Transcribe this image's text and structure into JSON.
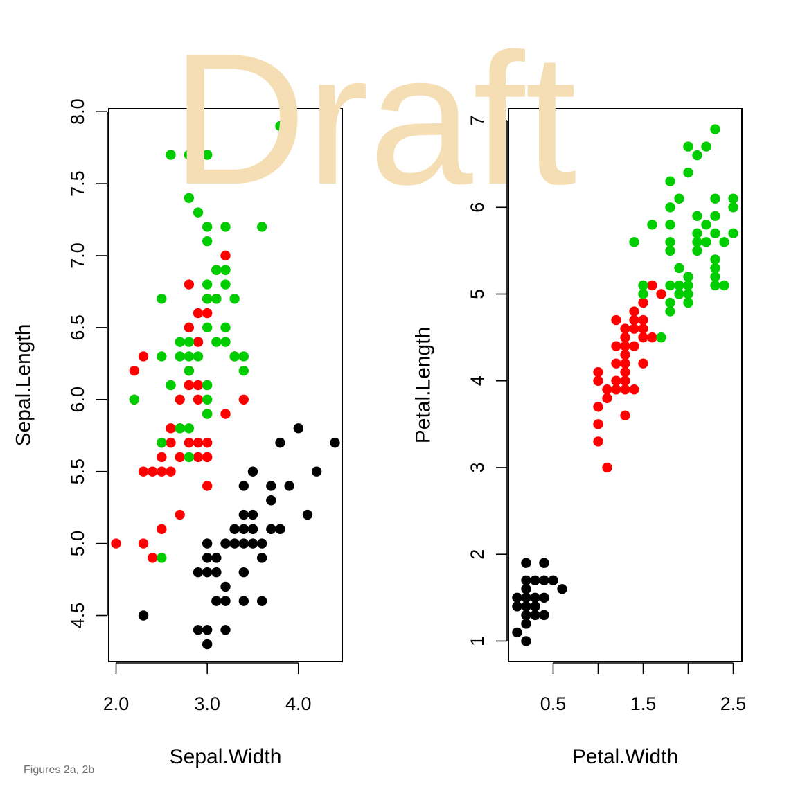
{
  "watermark": "Draft",
  "caption": "Figures 2a, 2b",
  "colors": {
    "setosa": "#000000",
    "versicolor": "#ff0000",
    "virginica": "#00cd00",
    "watermark": "#f5deb3"
  },
  "chart_data": [
    {
      "type": "scatter",
      "title": "",
      "xlabel": "Sepal.Width",
      "ylabel": "Sepal.Length",
      "xlim": [
        1.92,
        4.48
      ],
      "ylim": [
        4.18,
        8.02
      ],
      "xticks": [
        2.0,
        3.0,
        4.0
      ],
      "xtick_labels": [
        "2.0",
        "3.0",
        "4.0"
      ],
      "yticks": [
        4.5,
        5.0,
        5.5,
        6.0,
        6.5,
        7.0,
        7.5,
        8.0
      ],
      "ytick_labels": [
        "4.5",
        "5.0",
        "5.5",
        "6.0",
        "6.5",
        "7.0",
        "7.5",
        "8.0"
      ],
      "series": [
        {
          "color": "#000000",
          "points": [
            [
              2.3,
              4.5
            ],
            [
              2.9,
              4.4
            ],
            [
              3.0,
              4.4
            ],
            [
              3.0,
              4.3
            ],
            [
              3.2,
              4.4
            ],
            [
              3.0,
              4.8
            ],
            [
              3.0,
              4.9
            ],
            [
              2.9,
              4.8
            ],
            [
              3.1,
              4.9
            ],
            [
              3.1,
              4.8
            ],
            [
              3.0,
              5.0
            ],
            [
              3.1,
              4.6
            ],
            [
              3.2,
              4.6
            ],
            [
              3.2,
              4.7
            ],
            [
              3.2,
              5.0
            ],
            [
              3.3,
              5.0
            ],
            [
              3.4,
              5.0
            ],
            [
              3.4,
              5.1
            ],
            [
              3.4,
              4.8
            ],
            [
              3.4,
              4.6
            ],
            [
              3.5,
              5.0
            ],
            [
              3.5,
              5.1
            ],
            [
              3.5,
              5.2
            ],
            [
              3.4,
              5.2
            ],
            [
              3.4,
              5.4
            ],
            [
              3.6,
              5.0
            ],
            [
              3.6,
              4.6
            ],
            [
              3.5,
              5.5
            ],
            [
              3.6,
              4.9
            ],
            [
              3.7,
              5.1
            ],
            [
              3.7,
              5.3
            ],
            [
              3.7,
              5.4
            ],
            [
              3.8,
              5.1
            ],
            [
              3.8,
              5.7
            ],
            [
              3.9,
              5.4
            ],
            [
              4.0,
              5.8
            ],
            [
              4.1,
              5.2
            ],
            [
              4.2,
              5.5
            ],
            [
              4.4,
              5.7
            ],
            [
              3.3,
              5.1
            ]
          ]
        },
        {
          "color": "#ff0000",
          "points": [
            [
              2.0,
              5.0
            ],
            [
              2.2,
              6.2
            ],
            [
              2.2,
              6.0
            ],
            [
              2.3,
              6.3
            ],
            [
              2.3,
              5.5
            ],
            [
              2.3,
              5.0
            ],
            [
              2.4,
              5.5
            ],
            [
              2.4,
              4.9
            ],
            [
              2.5,
              5.5
            ],
            [
              2.5,
              5.6
            ],
            [
              2.5,
              5.1
            ],
            [
              2.5,
              5.7
            ],
            [
              2.6,
              5.5
            ],
            [
              2.6,
              5.8
            ],
            [
              2.6,
              5.7
            ],
            [
              2.7,
              5.8
            ],
            [
              2.7,
              6.0
            ],
            [
              2.7,
              5.6
            ],
            [
              2.7,
              5.2
            ],
            [
              2.8,
              6.5
            ],
            [
              2.8,
              6.8
            ],
            [
              2.8,
              6.1
            ],
            [
              2.8,
              5.7
            ],
            [
              2.9,
              6.6
            ],
            [
              2.9,
              6.4
            ],
            [
              2.9,
              6.1
            ],
            [
              2.9,
              6.0
            ],
            [
              2.9,
              5.7
            ],
            [
              2.9,
              5.6
            ],
            [
              3.0,
              6.7
            ],
            [
              3.0,
              6.6
            ],
            [
              3.0,
              5.9
            ],
            [
              3.0,
              5.7
            ],
            [
              3.0,
              5.6
            ],
            [
              3.0,
              5.4
            ],
            [
              3.1,
              6.7
            ],
            [
              3.1,
              6.9
            ],
            [
              3.2,
              7.0
            ],
            [
              3.2,
              5.9
            ],
            [
              3.4,
              6.0
            ],
            [
              3.3,
              6.3
            ],
            [
              2.8,
              6.2
            ]
          ]
        },
        {
          "color": "#00cd00",
          "points": [
            [
              2.2,
              6.0
            ],
            [
              2.5,
              6.3
            ],
            [
              2.5,
              6.7
            ],
            [
              2.5,
              5.7
            ],
            [
              2.5,
              4.9
            ],
            [
              2.6,
              6.1
            ],
            [
              2.6,
              7.7
            ],
            [
              2.7,
              6.4
            ],
            [
              2.7,
              6.3
            ],
            [
              2.7,
              5.8
            ],
            [
              2.8,
              7.7
            ],
            [
              2.8,
              7.4
            ],
            [
              2.8,
              6.4
            ],
            [
              2.8,
              6.3
            ],
            [
              2.8,
              6.2
            ],
            [
              2.8,
              5.8
            ],
            [
              2.8,
              5.6
            ],
            [
              2.9,
              7.3
            ],
            [
              2.9,
              6.3
            ],
            [
              3.0,
              7.7
            ],
            [
              3.0,
              7.2
            ],
            [
              3.0,
              7.1
            ],
            [
              3.0,
              6.8
            ],
            [
              3.0,
              6.7
            ],
            [
              3.0,
              6.5
            ],
            [
              3.0,
              6.1
            ],
            [
              3.0,
              6.0
            ],
            [
              3.0,
              5.9
            ],
            [
              3.1,
              6.9
            ],
            [
              3.1,
              6.7
            ],
            [
              3.1,
              6.4
            ],
            [
              3.2,
              7.2
            ],
            [
              3.2,
              6.9
            ],
            [
              3.2,
              6.8
            ],
            [
              3.2,
              6.5
            ],
            [
              3.2,
              6.4
            ],
            [
              3.3,
              6.7
            ],
            [
              3.3,
              6.3
            ],
            [
              3.4,
              6.3
            ],
            [
              3.4,
              6.2
            ],
            [
              3.6,
              7.2
            ],
            [
              3.8,
              7.7
            ],
            [
              3.8,
              7.9
            ]
          ]
        }
      ]
    },
    {
      "type": "scatter",
      "title": "",
      "xlabel": "Petal.Width",
      "ylabel": "Petal.Length",
      "xlim": [
        0.004,
        2.596
      ],
      "ylim": [
        0.764,
        7.136
      ],
      "xticks": [
        0.5,
        1.0,
        1.5,
        2.0,
        2.5
      ],
      "xtick_labels": [
        "0.5",
        "",
        "1.5",
        "",
        "2.5"
      ],
      "yticks": [
        1,
        2,
        3,
        4,
        5,
        6,
        7
      ],
      "ytick_labels": [
        "1",
        "2",
        "3",
        "4",
        "5",
        "6",
        "7"
      ],
      "series": [
        {
          "color": "#000000",
          "points": [
            [
              0.1,
              1.1
            ],
            [
              0.1,
              1.4
            ],
            [
              0.1,
              1.5
            ],
            [
              0.2,
              1.0
            ],
            [
              0.2,
              1.2
            ],
            [
              0.2,
              1.3
            ],
            [
              0.2,
              1.4
            ],
            [
              0.2,
              1.5
            ],
            [
              0.2,
              1.6
            ],
            [
              0.2,
              1.7
            ],
            [
              0.2,
              1.9
            ],
            [
              0.3,
              1.3
            ],
            [
              0.3,
              1.4
            ],
            [
              0.3,
              1.5
            ],
            [
              0.3,
              1.7
            ],
            [
              0.4,
              1.3
            ],
            [
              0.4,
              1.5
            ],
            [
              0.4,
              1.7
            ],
            [
              0.4,
              1.9
            ],
            [
              0.5,
              1.7
            ],
            [
              0.6,
              1.6
            ]
          ]
        },
        {
          "color": "#ff0000",
          "points": [
            [
              1.0,
              3.3
            ],
            [
              1.0,
              3.5
            ],
            [
              1.0,
              3.7
            ],
            [
              1.0,
              4.0
            ],
            [
              1.0,
              4.1
            ],
            [
              1.1,
              3.0
            ],
            [
              1.1,
              3.8
            ],
            [
              1.1,
              3.9
            ],
            [
              1.2,
              3.9
            ],
            [
              1.2,
              4.0
            ],
            [
              1.2,
              4.2
            ],
            [
              1.2,
              4.4
            ],
            [
              1.2,
              4.7
            ],
            [
              1.3,
              3.6
            ],
            [
              1.3,
              3.9
            ],
            [
              1.3,
              4.0
            ],
            [
              1.3,
              4.1
            ],
            [
              1.3,
              4.2
            ],
            [
              1.3,
              4.3
            ],
            [
              1.3,
              4.4
            ],
            [
              1.3,
              4.5
            ],
            [
              1.3,
              4.6
            ],
            [
              1.4,
              3.9
            ],
            [
              1.4,
              4.4
            ],
            [
              1.4,
              4.6
            ],
            [
              1.4,
              4.7
            ],
            [
              1.4,
              4.8
            ],
            [
              1.5,
              4.2
            ],
            [
              1.5,
              4.5
            ],
            [
              1.5,
              4.6
            ],
            [
              1.5,
              4.7
            ],
            [
              1.5,
              4.9
            ],
            [
              1.6,
              4.5
            ],
            [
              1.6,
              5.1
            ],
            [
              1.7,
              5.0
            ]
          ]
        },
        {
          "color": "#00cd00",
          "points": [
            [
              1.4,
              5.6
            ],
            [
              1.5,
              5.0
            ],
            [
              1.5,
              5.1
            ],
            [
              1.6,
              5.8
            ],
            [
              1.7,
              4.5
            ],
            [
              1.8,
              4.8
            ],
            [
              1.8,
              4.9
            ],
            [
              1.8,
              5.1
            ],
            [
              1.8,
              5.5
            ],
            [
              1.8,
              5.6
            ],
            [
              1.8,
              5.8
            ],
            [
              1.8,
              6.0
            ],
            [
              1.8,
              6.3
            ],
            [
              1.9,
              5.0
            ],
            [
              1.9,
              5.1
            ],
            [
              1.9,
              5.3
            ],
            [
              1.9,
              6.1
            ],
            [
              2.0,
              4.9
            ],
            [
              2.0,
              5.0
            ],
            [
              2.0,
              5.1
            ],
            [
              2.0,
              5.2
            ],
            [
              2.0,
              6.4
            ],
            [
              2.0,
              6.7
            ],
            [
              2.1,
              5.5
            ],
            [
              2.1,
              5.6
            ],
            [
              2.1,
              5.7
            ],
            [
              2.1,
              5.9
            ],
            [
              2.1,
              6.6
            ],
            [
              2.2,
              5.6
            ],
            [
              2.2,
              5.8
            ],
            [
              2.2,
              6.7
            ],
            [
              2.3,
              5.1
            ],
            [
              2.3,
              5.2
            ],
            [
              2.3,
              5.3
            ],
            [
              2.3,
              5.4
            ],
            [
              2.3,
              5.7
            ],
            [
              2.3,
              5.9
            ],
            [
              2.3,
              6.1
            ],
            [
              2.3,
              6.9
            ],
            [
              2.4,
              5.1
            ],
            [
              2.4,
              5.6
            ],
            [
              2.5,
              5.7
            ],
            [
              2.5,
              6.0
            ],
            [
              2.5,
              6.1
            ]
          ]
        }
      ]
    }
  ]
}
